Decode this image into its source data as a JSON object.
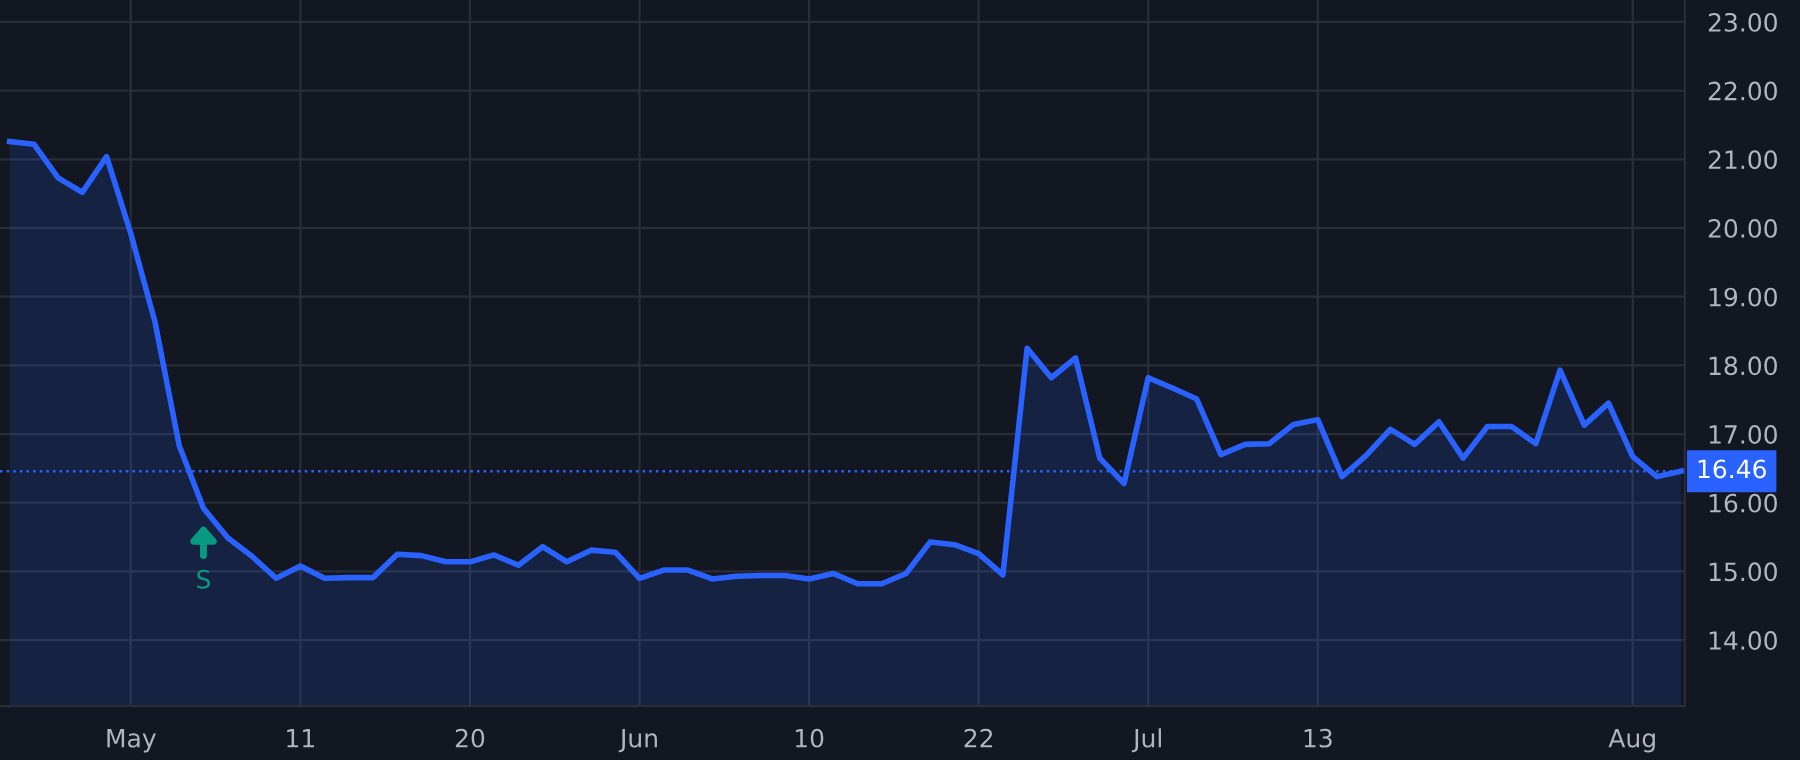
{
  "chart_data": {
    "type": "area",
    "categories": [
      null,
      null,
      null,
      null,
      null,
      "May",
      null,
      null,
      null,
      null,
      null,
      null,
      "11",
      null,
      null,
      null,
      null,
      null,
      null,
      "20",
      null,
      null,
      null,
      null,
      null,
      null,
      "Jun",
      null,
      null,
      null,
      null,
      null,
      null,
      "10",
      null,
      null,
      null,
      null,
      null,
      null,
      "22",
      null,
      null,
      null,
      null,
      null,
      null,
      "Jul",
      null,
      null,
      null,
      null,
      null,
      null,
      "13",
      null,
      null,
      null,
      null,
      null,
      null,
      null,
      null,
      null,
      null,
      null,
      null,
      "Aug",
      null,
      null
    ],
    "series": [
      {
        "color": "#2962ff",
        "values": [
          21.26,
          21.22,
          20.73,
          20.52,
          21.04,
          19.92,
          18.63,
          16.83,
          15.92,
          15.49,
          15.22,
          14.9,
          15.08,
          14.9,
          14.91,
          14.91,
          15.25,
          15.23,
          15.14,
          15.14,
          15.24,
          15.09,
          15.36,
          15.14,
          15.31,
          15.28,
          14.9,
          15.02,
          15.02,
          14.89,
          14.93,
          14.94,
          14.94,
          14.89,
          14.97,
          14.82,
          14.82,
          14.97,
          15.43,
          15.39,
          15.26,
          14.95,
          18.25,
          17.82,
          18.11,
          16.65,
          16.28,
          17.82,
          17.67,
          17.51,
          16.7,
          16.85,
          16.86,
          17.14,
          17.21,
          16.38,
          16.69,
          17.07,
          16.85,
          17.18,
          16.65,
          17.11,
          17.11,
          16.86,
          17.93,
          17.13,
          17.45,
          16.67,
          16.38,
          16.46
        ]
      }
    ],
    "ylim": [
      13.04,
      23.32
    ],
    "yticks": [
      {
        "value": 14,
        "label": "14.00"
      },
      {
        "value": 15,
        "label": "15.00"
      },
      {
        "value": 16,
        "label": "16.00"
      },
      {
        "value": 17,
        "label": "17.00"
      },
      {
        "value": 18,
        "label": "18.00"
      },
      {
        "value": 19,
        "label": "19.00"
      },
      {
        "value": 20,
        "label": "20.00"
      },
      {
        "value": 21,
        "label": "21.00"
      },
      {
        "value": 22,
        "label": "22.00"
      },
      {
        "value": 23,
        "label": "23.00"
      }
    ],
    "ref_lines": [
      {
        "axis": "y",
        "value": 16.46,
        "label": "16.46",
        "color": "#2962ff",
        "line_style": "dotted"
      }
    ],
    "annotations": [
      {
        "text": "S",
        "y": 15.92
      }
    ],
    "grid": true,
    "legend": false
  }
}
